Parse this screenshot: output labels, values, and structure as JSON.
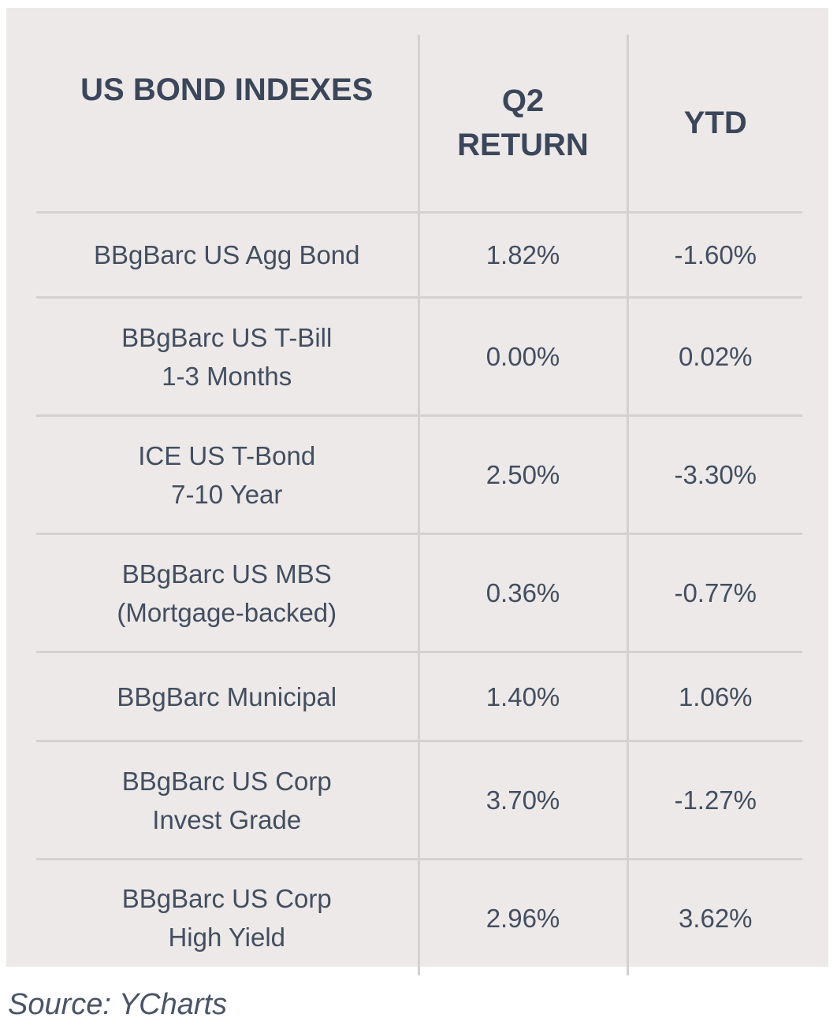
{
  "table": {
    "headers": {
      "index": "US BOND INDEXES",
      "q2_line1": "Q2",
      "q2_line2": "RETURN",
      "ytd": "YTD"
    },
    "rows": [
      {
        "name_line1": "BBgBarc US Agg Bond",
        "name_line2": "",
        "q2": "1.82%",
        "ytd": "-1.60%"
      },
      {
        "name_line1": "BBgBarc US T-Bill",
        "name_line2": "1-3 Months",
        "q2": "0.00%",
        "ytd": "0.02%"
      },
      {
        "name_line1": "ICE US T-Bond",
        "name_line2": "7-10 Year",
        "q2": "2.50%",
        "ytd": "-3.30%"
      },
      {
        "name_line1": "BBgBarc US MBS",
        "name_line2": "(Mortgage-backed)",
        "q2": "0.36%",
        "ytd": "-0.77%"
      },
      {
        "name_line1": "BBgBarc Municipal",
        "name_line2": "",
        "q2": "1.40%",
        "ytd": "1.06%"
      },
      {
        "name_line1": "BBgBarc US Corp",
        "name_line2": "Invest Grade",
        "q2": "3.70%",
        "ytd": "-1.27%"
      },
      {
        "name_line1": "BBgBarc US Corp",
        "name_line2": "High Yield",
        "q2": "2.96%",
        "ytd": "3.62%"
      }
    ]
  },
  "source": "Source: YCharts",
  "colors": {
    "panel_bg": "#ece9e8",
    "text": "#3f4a5c",
    "rule": "#d3d1d1"
  }
}
